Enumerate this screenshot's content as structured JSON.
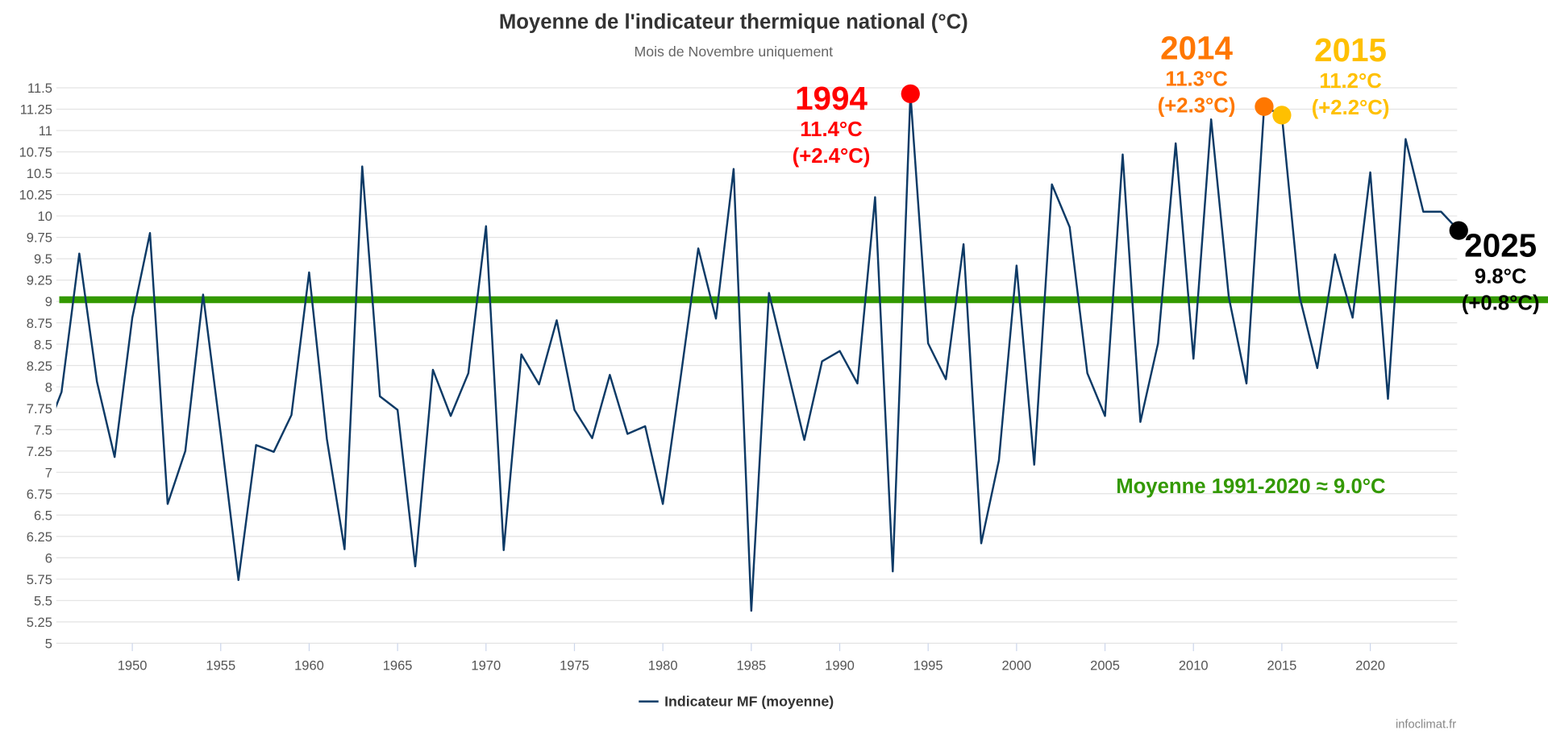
{
  "chart_data": {
    "type": "line",
    "title": "Moyenne de l'indicateur thermique national (°C)",
    "subtitle": "Mois de Novembre uniquement",
    "xlabel": "",
    "ylabel": "",
    "xlim": [
      1945.7,
      2025
    ],
    "ylim": [
      5,
      11.5
    ],
    "y_ticks": [
      "5",
      "5.25",
      "5.5",
      "5.75",
      "6",
      "6.25",
      "6.5",
      "6.75",
      "7",
      "7.25",
      "7.5",
      "7.75",
      "8",
      "8.25",
      "8.5",
      "8.75",
      "9",
      "9.25",
      "9.5",
      "9.75",
      "10",
      "10.25",
      "10.5",
      "10.75",
      "11",
      "11.25",
      "11.5"
    ],
    "x_ticks": [
      "1950",
      "1955",
      "1960",
      "1965",
      "1970",
      "1975",
      "1980",
      "1985",
      "1990",
      "1995",
      "2000",
      "2005",
      "2010",
      "2015",
      "2020"
    ],
    "grid": true,
    "legend_position": "bottom",
    "series": [
      {
        "name": "Indicateur MF (moyenne)",
        "color": "#0d3a66",
        "x": [
          1945,
          1946,
          1947,
          1948,
          1949,
          1950,
          1951,
          1952,
          1953,
          1954,
          1955,
          1956,
          1957,
          1958,
          1959,
          1960,
          1961,
          1962,
          1963,
          1964,
          1965,
          1966,
          1967,
          1968,
          1969,
          1970,
          1971,
          1972,
          1973,
          1974,
          1975,
          1976,
          1977,
          1978,
          1979,
          1980,
          1981,
          1982,
          1983,
          1984,
          1985,
          1986,
          1987,
          1988,
          1989,
          1990,
          1991,
          1992,
          1993,
          1994,
          1995,
          1996,
          1997,
          1998,
          1999,
          2000,
          2001,
          2002,
          2003,
          2004,
          2005,
          2006,
          2007,
          2008,
          2009,
          2010,
          2011,
          2012,
          2013,
          2014,
          2015,
          2016,
          2017,
          2018,
          2019,
          2020,
          2021,
          2022,
          2023,
          2024,
          2025
        ],
        "values": [
          7.4,
          7.94,
          9.56,
          8.06,
          7.18,
          8.81,
          9.8,
          6.63,
          7.25,
          9.08,
          7.45,
          5.74,
          7.32,
          7.24,
          7.67,
          9.34,
          7.39,
          6.1,
          10.58,
          7.89,
          7.73,
          5.9,
          8.2,
          7.66,
          8.16,
          9.88,
          6.09,
          8.38,
          8.03,
          8.78,
          7.73,
          7.4,
          8.14,
          7.45,
          7.54,
          6.63,
          8.1,
          9.62,
          8.8,
          10.55,
          5.38,
          9.1,
          8.24,
          7.38,
          8.3,
          8.42,
          8.04,
          10.22,
          5.84,
          11.43,
          8.51,
          8.09,
          9.67,
          6.17,
          7.14,
          9.42,
          7.09,
          10.37,
          9.87,
          8.16,
          7.66,
          10.72,
          7.59,
          8.51,
          10.85,
          8.33,
          11.13,
          9.05,
          8.04,
          11.28,
          11.18,
          9.06,
          8.22,
          9.55,
          8.81,
          10.51,
          7.86,
          10.9,
          10.05,
          10.05,
          9.83
        ]
      }
    ],
    "reference_line": {
      "value": 9.02,
      "color": "#339900",
      "label": "Moyenne 1991-2020  ≈ 9.0°C"
    },
    "annotations": [
      {
        "year": 1994,
        "value": 11.43,
        "year_label": "1994",
        "temp_label": "11.4°C",
        "anomaly_label": "(+2.4°C)",
        "color": "#ff0000"
      },
      {
        "year": 2014,
        "value": 11.28,
        "year_label": "2014",
        "temp_label": "11.3°C",
        "anomaly_label": "(+2.3°C)",
        "color": "#ff7700"
      },
      {
        "year": 2015,
        "value": 11.18,
        "year_label": "2015",
        "temp_label": "11.2°C",
        "anomaly_label": "(+2.2°C)",
        "color": "#ffc000"
      },
      {
        "year": 2025,
        "value": 9.83,
        "year_label": "2025",
        "temp_label": "9.8°C",
        "anomaly_label": "(+0.8°C)",
        "color": "#000000"
      }
    ]
  },
  "credit": "infoclimat.fr"
}
